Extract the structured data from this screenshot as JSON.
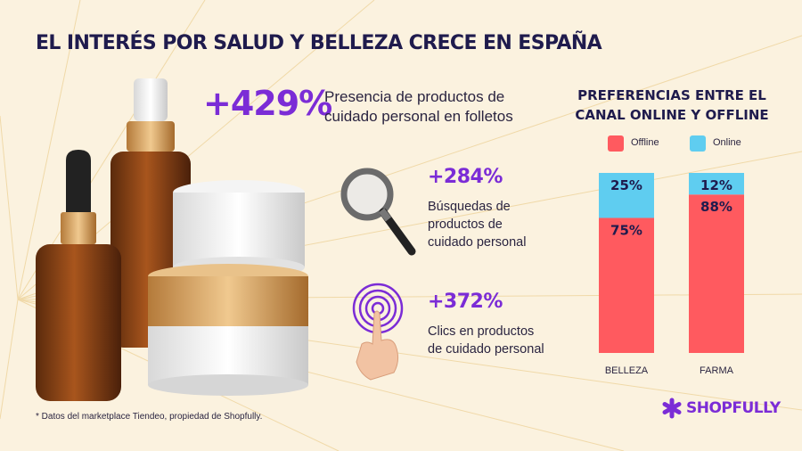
{
  "header": {
    "title": "EL INTERÉS POR SALUD Y BELLEZA CRECE EN ESPAÑA"
  },
  "stats": [
    {
      "value": "+429%",
      "description": "Presencia de productos de cuidado personal en folletos",
      "icon": "beauty-products-photo"
    },
    {
      "value": "+284%",
      "description_lines": [
        "Búsquedas de",
        "productos de",
        "cuidado personal"
      ],
      "icon": "magnifying-glass-icon"
    },
    {
      "value": "+372%",
      "description_lines": [
        "Clics en productos",
        "de cuidado personal"
      ],
      "icon": "touch-click-icon"
    }
  ],
  "chart_data": {
    "type": "bar",
    "stacked": true,
    "title": "PREFERENCIAS ENTRE EL CANAL ONLINE Y OFFLINE",
    "categories": [
      "BELLEZA",
      "FARMA"
    ],
    "series": [
      {
        "name": "Offline",
        "values": [
          75,
          88
        ],
        "labels": [
          "75%",
          "88%"
        ],
        "color": "#ff5a5f"
      },
      {
        "name": "Online",
        "values": [
          25,
          12
        ],
        "labels": [
          "25%",
          "12%"
        ],
        "color": "#5fcdf0"
      }
    ],
    "ylim": [
      0,
      100
    ],
    "legend_position": "top",
    "grid": false
  },
  "footer": {
    "note": "* Datos del marketplace Tiendeo, propiedad de Shopfully.",
    "brand": "SHOPFULLY"
  },
  "colors": {
    "background": "#fbf2df",
    "accent": "#7b2cd6",
    "title": "#1f1b4d"
  }
}
